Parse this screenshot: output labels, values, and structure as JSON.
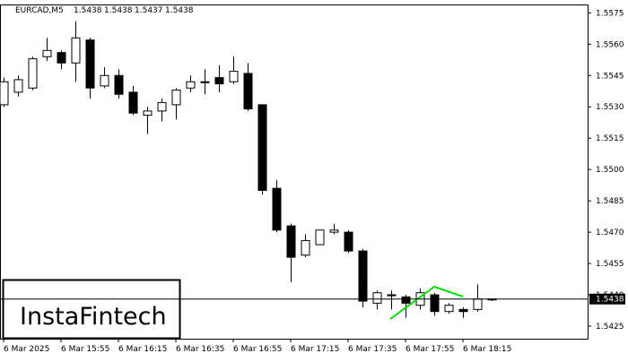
{
  "chart_data": {
    "type": "candlestick",
    "symbol": "EURCAD,M5",
    "header_ohlc": [
      1.5438,
      1.5438,
      1.5437,
      1.5438
    ],
    "current_price": 1.5438,
    "brand": "InstaFintech",
    "x": [
      "6 Mar 2025",
      null,
      null,
      null,
      "6 Mar 15:55",
      null,
      null,
      null,
      "6 Mar 16:15",
      null,
      null,
      null,
      "6 Mar 16:35",
      null,
      null,
      null,
      "6 Mar 16:55",
      null,
      null,
      null,
      "6 Mar 17:15",
      null,
      null,
      null,
      "6 Mar 17:35",
      null,
      null,
      null,
      "6 Mar 17:55",
      null,
      null,
      null,
      "6 Mar 18:15",
      null,
      null
    ],
    "open": [
      1.5531,
      1.5537,
      1.5539,
      1.5554,
      1.5556,
      1.5551,
      1.5562,
      1.554,
      1.5545,
      1.5537,
      1.5526,
      1.5528,
      1.5531,
      1.5539,
      1.5542,
      1.5544,
      1.5542,
      1.5546,
      1.5531,
      1.5491,
      1.5473,
      1.5459,
      1.5464,
      1.547,
      1.547,
      1.5461,
      1.5436,
      1.544,
      1.5439,
      1.5435,
      1.544,
      1.5432,
      1.5433,
      1.5433,
      1.5438
    ],
    "high": [
      1.5544,
      1.5545,
      1.5554,
      1.5563,
      1.5557,
      1.5571,
      1.5563,
      1.5549,
      1.5548,
      1.554,
      1.553,
      1.5534,
      1.5539,
      1.5545,
      1.5548,
      1.555,
      1.5554,
      1.5551,
      1.5531,
      1.5495,
      1.5474,
      1.5469,
      1.5471,
      1.5474,
      1.5471,
      1.5462,
      1.5442,
      1.5442,
      1.544,
      1.5443,
      1.5441,
      1.5436,
      1.5434,
      1.5445,
      1.5438
    ],
    "low": [
      1.553,
      1.5535,
      1.5538,
      1.5552,
      1.5548,
      1.5542,
      1.5534,
      1.5539,
      1.5534,
      1.5526,
      1.5517,
      1.5523,
      1.5524,
      1.5537,
      1.5536,
      1.5537,
      1.5541,
      1.5528,
      1.5488,
      1.547,
      1.5446,
      1.5458,
      1.5464,
      1.5469,
      1.546,
      1.5434,
      1.5433,
      1.5433,
      1.5429,
      1.5433,
      1.543,
      1.5431,
      1.5429,
      1.5432,
      1.5437
    ],
    "close": [
      1.5542,
      1.5543,
      1.5553,
      1.5557,
      1.5551,
      1.5563,
      1.5539,
      1.5545,
      1.5536,
      1.5527,
      1.5528,
      1.5532,
      1.5538,
      1.5542,
      1.5542,
      1.5541,
      1.5547,
      1.5529,
      1.549,
      1.5471,
      1.5458,
      1.5466,
      1.5471,
      1.5471,
      1.5461,
      1.5437,
      1.5441,
      1.544,
      1.5436,
      1.5441,
      1.5432,
      1.5435,
      1.5432,
      1.5438,
      1.5438
    ],
    "ylim": [
      1.5419,
      1.5579
    ],
    "yticks": [
      1.5575,
      {
        "value": 1.556,
        "label": "1.5560"
      },
      1.5545,
      {
        "value": 1.553,
        "label": "1.5530"
      },
      1.5515,
      {
        "value": 1.55,
        "label": "1.5500"
      },
      1.5485,
      {
        "value": 1.547,
        "label": "1.5470"
      },
      1.5455,
      {
        "value": 1.544,
        "label": "1.5440"
      },
      1.5425
    ],
    "bull_color": "#ffffff",
    "bear_color": "#000000",
    "pattern_color": "#00dd00"
  }
}
